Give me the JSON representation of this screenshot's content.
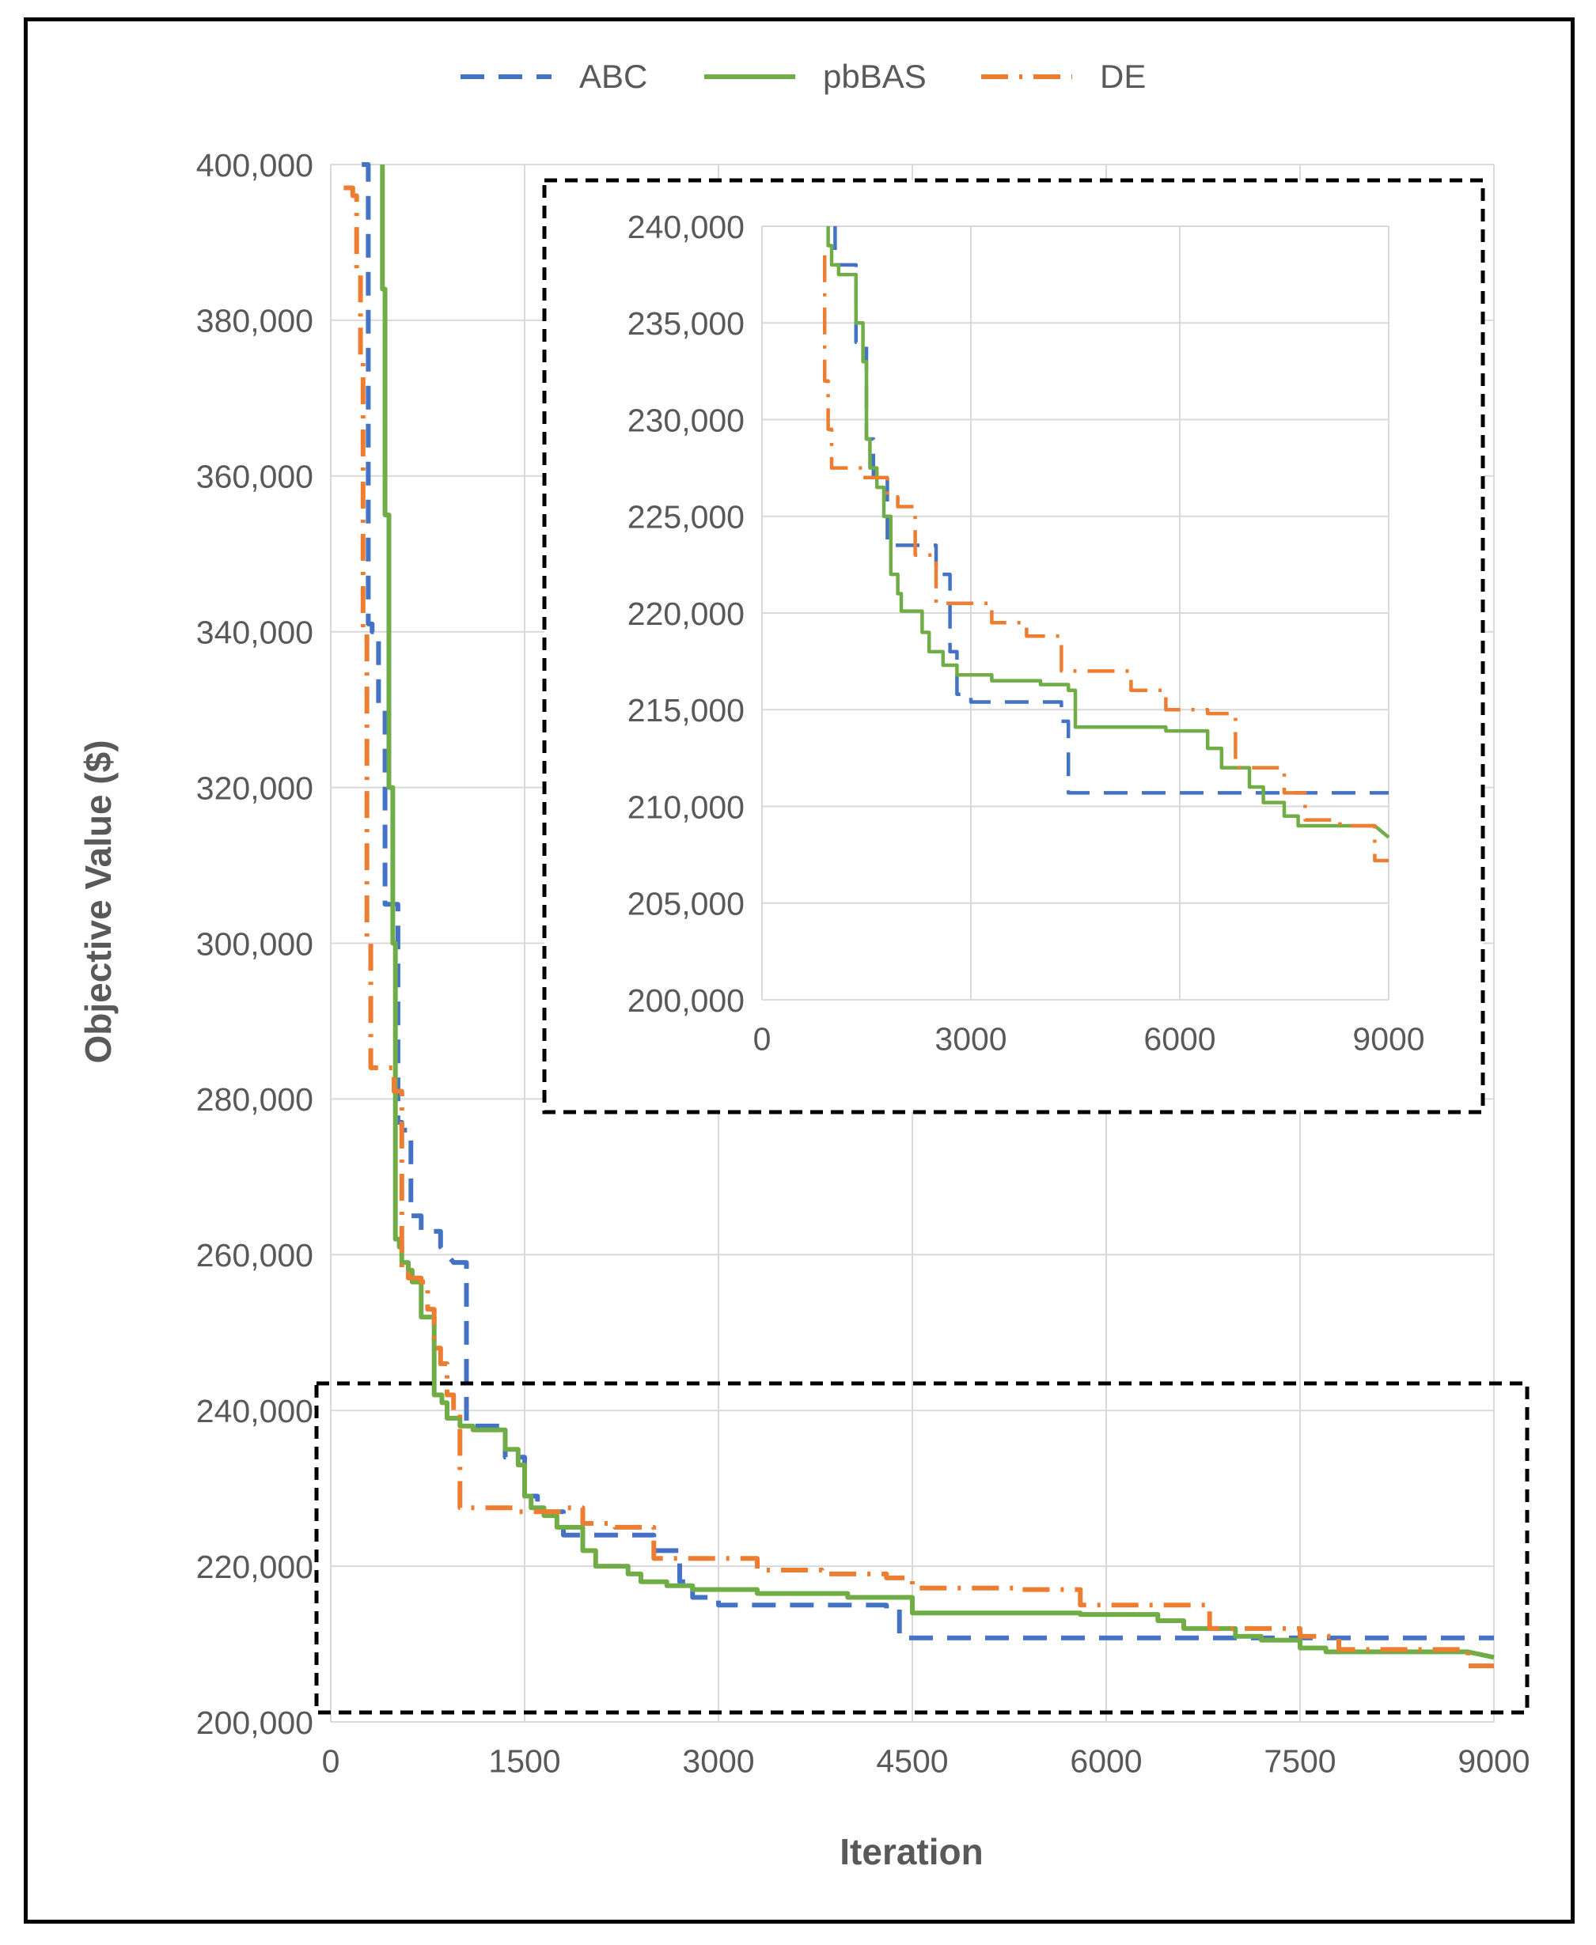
{
  "chart_data": [
    {
      "type": "line",
      "title": "",
      "xlabel": "Iteration",
      "ylabel": "Objective Value ($)",
      "xlim": [
        0,
        9000
      ],
      "ylim": [
        200000,
        400000
      ],
      "x_ticks": [
        "0",
        "1500",
        "3000",
        "4500",
        "6000",
        "7500",
        "9000"
      ],
      "y_ticks": [
        "200,000",
        "220,000",
        "240,000",
        "260,000",
        "280,000",
        "300,000",
        "320,000",
        "340,000",
        "360,000",
        "380,000",
        "400,000"
      ],
      "grid": true,
      "legend": "top",
      "series": [
        {
          "name": "ABC",
          "color": "#4472C4",
          "style": "dashed",
          "x": [
            240,
            290,
            290,
            320,
            320,
            370,
            370,
            420,
            420,
            520,
            520,
            550,
            550,
            620,
            620,
            700,
            700,
            850,
            850,
            950,
            1050,
            1050,
            1350,
            1350,
            1500,
            1500,
            1600,
            1600,
            1800,
            1800,
            2500,
            2500,
            2700,
            2700,
            2800,
            2800,
            3000,
            3000,
            4300,
            4300,
            4400,
            4400,
            9000
          ],
          "y": [
            400000,
            400000,
            341000,
            341000,
            340000,
            340000,
            330000,
            330000,
            305000,
            305000,
            277000,
            277000,
            276000,
            276000,
            265000,
            265000,
            263000,
            263000,
            261000,
            259000,
            259000,
            238000,
            238000,
            234000,
            234000,
            229000,
            229000,
            227000,
            227000,
            224000,
            224000,
            222000,
            222000,
            218000,
            218000,
            216000,
            216000,
            215000,
            215000,
            214500,
            214500,
            210800,
            210800
          ]
        },
        {
          "name": "pbBAS",
          "color": "#70AD47",
          "style": "solid",
          "x": [
            400,
            400,
            420,
            420,
            450,
            450,
            480,
            480,
            500,
            500,
            530,
            530,
            550,
            550,
            600,
            600,
            630,
            630,
            700,
            700,
            800,
            800,
            860,
            860,
            900,
            900,
            1000,
            1000,
            1100,
            1100,
            1350,
            1350,
            1450,
            1450,
            1500,
            1500,
            1550,
            1550,
            1650,
            1650,
            1750,
            1750,
            1950,
            1950,
            2050,
            2050,
            2300,
            2300,
            2400,
            2400,
            2600,
            2600,
            2800,
            2800,
            3300,
            3300,
            4000,
            4000,
            4500,
            4500,
            5800,
            5800,
            6400,
            6400,
            6600,
            6600,
            7000,
            7000,
            7200,
            7200,
            7500,
            7500,
            7700,
            7700,
            8800,
            9000
          ],
          "y": [
            400000,
            384000,
            384000,
            355000,
            355000,
            320000,
            320000,
            300000,
            300000,
            262000,
            262000,
            261000,
            261000,
            259000,
            259000,
            258000,
            258000,
            256500,
            256500,
            252000,
            252000,
            242000,
            242000,
            241000,
            241000,
            239000,
            239000,
            238000,
            238000,
            237500,
            237500,
            235000,
            235000,
            233000,
            233000,
            229000,
            229000,
            227500,
            227500,
            226500,
            226500,
            225000,
            225000,
            222000,
            222000,
            220000,
            220000,
            219000,
            219000,
            218000,
            218000,
            217500,
            217500,
            217000,
            217000,
            216500,
            216500,
            216000,
            216000,
            214000,
            214000,
            213800,
            213800,
            213000,
            213000,
            212000,
            212000,
            211000,
            211000,
            210500,
            210500,
            209500,
            209500,
            209000,
            209000,
            208300
          ]
        },
        {
          "name": "DE",
          "color": "#ED7D31",
          "style": "dash-dot",
          "x": [
            100,
            170,
            170,
            200,
            200,
            230,
            230,
            250,
            250,
            280,
            280,
            310,
            310,
            490,
            490,
            550,
            550,
            600,
            600,
            700,
            700,
            750,
            750,
            800,
            800,
            850,
            850,
            900,
            900,
            950,
            950,
            1000,
            1000,
            1450,
            1450,
            1800,
            1800,
            1950,
            1950,
            2200,
            2200,
            2500,
            2500,
            3300,
            3300,
            3800,
            3800,
            4300,
            4300,
            4500,
            4500,
            5300,
            5300,
            5800,
            5800,
            6800,
            6800,
            7500,
            7500,
            7800,
            7800,
            8800,
            8800,
            9000
          ],
          "y": [
            397000,
            397000,
            396000,
            396000,
            386000,
            386000,
            375000,
            375000,
            340000,
            340000,
            300000,
            300000,
            284000,
            284000,
            281000,
            281000,
            258000,
            258000,
            257000,
            257000,
            256500,
            256500,
            253000,
            253000,
            248000,
            248000,
            246000,
            246000,
            242000,
            242000,
            240000,
            240000,
            227500,
            227500,
            227000,
            227000,
            227500,
            227500,
            225500,
            225500,
            225000,
            225000,
            221000,
            221000,
            219500,
            219500,
            219000,
            219000,
            218500,
            218500,
            217200,
            217200,
            217000,
            217000,
            215000,
            215000,
            212000,
            212000,
            211000,
            211000,
            209300,
            209300,
            207200,
            207200
          ]
        }
      ]
    },
    {
      "type": "line",
      "title": "",
      "xlabel": "",
      "ylabel": "",
      "xlim": [
        0,
        9000
      ],
      "ylim": [
        200000,
        240000
      ],
      "x_ticks": [
        "0",
        "3000",
        "6000",
        "9000"
      ],
      "y_ticks": [
        "200,000",
        "205,000",
        "210,000",
        "215,000",
        "220,000",
        "225,000",
        "230,000",
        "235,000",
        "240,000"
      ],
      "grid": true,
      "legend": "none",
      "series": [
        {
          "name": "ABC",
          "color": "#4472C4",
          "style": "dashed",
          "x": [
            1050,
            1050,
            1350,
            1350,
            1500,
            1500,
            1600,
            1600,
            1800,
            1800,
            2500,
            2500,
            2700,
            2700,
            2800,
            2800,
            3000,
            3000,
            4300,
            4300,
            4400,
            4400,
            9000
          ],
          "y": [
            240000,
            238000,
            238000,
            234000,
            234000,
            229000,
            229000,
            227000,
            227000,
            223500,
            223500,
            222000,
            222000,
            218000,
            218000,
            215800,
            215800,
            215400,
            215400,
            214400,
            214400,
            210700,
            210700
          ]
        },
        {
          "name": "pbBAS",
          "color": "#70AD47",
          "style": "solid",
          "x": [
            950,
            950,
            1000,
            1000,
            1100,
            1100,
            1350,
            1350,
            1450,
            1450,
            1500,
            1500,
            1550,
            1550,
            1650,
            1650,
            1750,
            1750,
            1850,
            1850,
            1950,
            1950,
            2000,
            2000,
            2300,
            2300,
            2400,
            2400,
            2600,
            2600,
            2800,
            2800,
            3300,
            3300,
            4000,
            4000,
            4400,
            4400,
            4500,
            4500,
            5800,
            5800,
            6400,
            6400,
            6600,
            6600,
            7000,
            7000,
            7200,
            7200,
            7500,
            7500,
            7700,
            7700,
            8800,
            9000
          ],
          "y": [
            240000,
            239000,
            239000,
            238000,
            238000,
            237500,
            237500,
            235000,
            235000,
            233000,
            233000,
            229000,
            229000,
            227500,
            227500,
            226500,
            226500,
            225000,
            225000,
            222000,
            222000,
            221000,
            221000,
            220100,
            220100,
            219000,
            219000,
            218000,
            218000,
            217300,
            217300,
            216800,
            216800,
            216500,
            216500,
            216300,
            216300,
            216000,
            216000,
            214100,
            214100,
            213900,
            213900,
            213000,
            213000,
            212000,
            212000,
            211000,
            211000,
            210200,
            210200,
            209500,
            209500,
            209000,
            209000,
            208400
          ]
        },
        {
          "name": "DE",
          "color": "#ED7D31",
          "style": "dash-dot",
          "x": [
            900,
            900,
            950,
            950,
            1000,
            1000,
            1450,
            1450,
            1800,
            1800,
            1950,
            1950,
            2200,
            2200,
            2500,
            2500,
            3300,
            3300,
            3800,
            3800,
            4300,
            4300,
            5300,
            5300,
            5800,
            5800,
            6400,
            6400,
            6800,
            6800,
            7500,
            7500,
            7800,
            7800,
            8300,
            8300,
            8800,
            8800,
            9000
          ],
          "y": [
            238500,
            232000,
            232000,
            229500,
            229500,
            227500,
            227500,
            227000,
            227000,
            226000,
            226000,
            225500,
            225500,
            223000,
            223000,
            220500,
            220500,
            219500,
            219500,
            218800,
            218800,
            217000,
            217000,
            216000,
            216000,
            215000,
            215000,
            214800,
            214800,
            212000,
            212000,
            210700,
            210700,
            209300,
            209300,
            209000,
            209000,
            207200,
            207200
          ]
        }
      ]
    }
  ]
}
